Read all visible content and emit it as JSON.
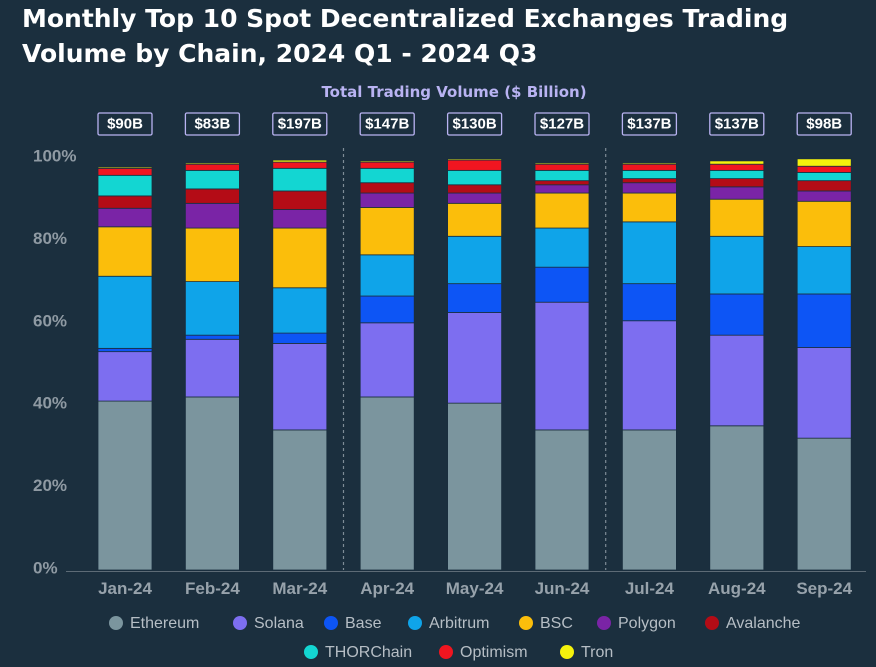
{
  "chart_data": {
    "type": "bar",
    "stacked": true,
    "normalized": true,
    "title": "Monthly Top 10 Spot Decentralized Exchanges Trading Volume by Chain, 2024 Q1 - 2024 Q3",
    "title_lines": [
      "Monthly Top 10 Spot Decentralized Exchanges Trading",
      "Volume by Chain, 2024 Q1 - 2024 Q3"
    ],
    "subtitle": "Total Trading Volume ($ Billion)",
    "categories": [
      "Jan-24",
      "Feb-24",
      "Mar-24",
      "Apr-24",
      "May-24",
      "Jun-24",
      "Jul-24",
      "Aug-24",
      "Sep-24"
    ],
    "totals": [
      "$90B",
      "$83B",
      "$197B",
      "$147B",
      "$130B",
      "$127B",
      "$137B",
      "$137B",
      "$98B"
    ],
    "ylim": [
      0,
      100
    ],
    "yticks": [
      0,
      20,
      40,
      60,
      80,
      100
    ],
    "ytick_labels": [
      "0%",
      "20%",
      "40%",
      "60%",
      "80%",
      "100%"
    ],
    "quarter_separators_after": [
      2,
      5
    ],
    "grid": false,
    "legend_position": "bottom",
    "series": [
      {
        "name": "Ethereum",
        "color": "#7b959e",
        "values": [
          41.0,
          42.0,
          34.0,
          42.0,
          40.5,
          34.0,
          34.0,
          35.0,
          32.0
        ]
      },
      {
        "name": "Solana",
        "color": "#7d6ef0",
        "values": [
          12.0,
          14.0,
          21.0,
          18.0,
          22.0,
          31.0,
          26.5,
          22.0,
          22.0
        ]
      },
      {
        "name": "Base",
        "color": "#0d55f5",
        "values": [
          0.8,
          1.0,
          2.5,
          6.5,
          7.0,
          8.5,
          9.0,
          10.0,
          13.0
        ]
      },
      {
        "name": "Arbitrum",
        "color": "#0fa4e9",
        "values": [
          17.5,
          13.0,
          11.0,
          10.0,
          11.5,
          9.5,
          15.0,
          14.0,
          11.5
        ]
      },
      {
        "name": "BSC",
        "color": "#fbbe0b",
        "values": [
          12.0,
          13.0,
          14.5,
          11.5,
          8.0,
          8.5,
          7.0,
          9.0,
          11.0
        ]
      },
      {
        "name": "Polygon",
        "color": "#7a24a6",
        "values": [
          4.5,
          6.0,
          4.5,
          3.5,
          2.5,
          2.0,
          2.5,
          3.0,
          2.5
        ]
      },
      {
        "name": "Avalanche",
        "color": "#b40c16",
        "values": [
          3.0,
          3.5,
          4.5,
          2.5,
          2.0,
          1.0,
          1.0,
          2.0,
          2.5
        ]
      },
      {
        "name": "THORChain",
        "color": "#13d6d2",
        "values": [
          5.0,
          4.5,
          5.5,
          3.5,
          3.5,
          2.5,
          2.0,
          2.0,
          2.0
        ]
      },
      {
        "name": "Optimism",
        "color": "#f01520",
        "values": [
          1.7,
          1.5,
          1.5,
          1.5,
          2.5,
          1.5,
          1.5,
          1.5,
          1.5
        ]
      },
      {
        "name": "Tron",
        "color": "#f5f20c",
        "values": [
          0.3,
          0.3,
          0.5,
          0.3,
          0.3,
          0.3,
          0.3,
          0.8,
          1.8
        ]
      }
    ]
  }
}
